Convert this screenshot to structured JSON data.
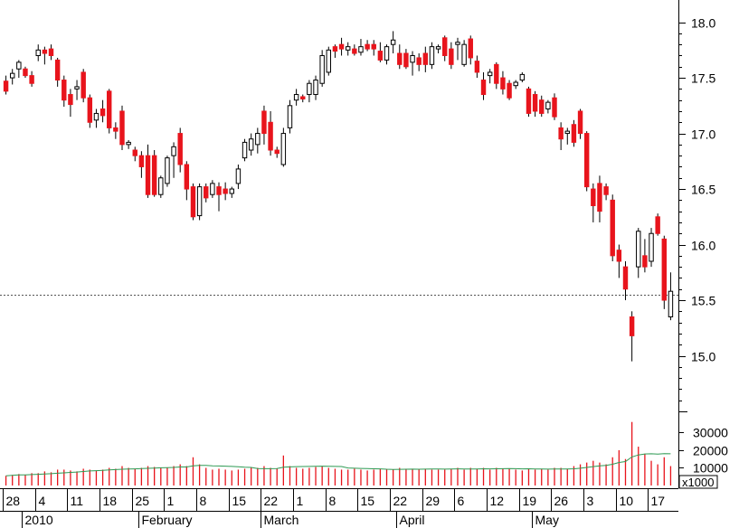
{
  "chart_data": {
    "type": "candlestick",
    "price_axis": {
      "range": [
        14.5,
        18.2
      ],
      "ticks": [
        "15.0",
        "15.5",
        "16.0",
        "16.5",
        "17.0",
        "17.5",
        "18.0"
      ],
      "reference_level": 15.55
    },
    "volume_axis": {
      "range": [
        0,
        42000
      ],
      "ticks": [
        "10000",
        "20000",
        "30000"
      ],
      "unit_label": "x1000"
    },
    "date_axis": {
      "day_labels": [
        "28",
        "4",
        "11",
        "18",
        "25",
        "1",
        "8",
        "15",
        "22",
        "1",
        "8",
        "15",
        "22",
        "29",
        "6",
        "12",
        "19",
        "26",
        "3",
        "10",
        "17"
      ],
      "month_labels": [
        "2010",
        "February",
        "March",
        "April",
        "May"
      ]
    },
    "candles": [
      {
        "o": 17.47,
        "h": 17.52,
        "l": 17.35,
        "c": 17.38,
        "v": 5500,
        "up": false
      },
      {
        "o": 17.5,
        "h": 17.58,
        "l": 17.44,
        "c": 17.54,
        "v": 6000,
        "up": true
      },
      {
        "o": 17.58,
        "h": 17.66,
        "l": 17.5,
        "c": 17.64,
        "v": 6500,
        "up": true
      },
      {
        "o": 17.58,
        "h": 17.6,
        "l": 17.5,
        "c": 17.52,
        "v": 6000,
        "up": false
      },
      {
        "o": 17.52,
        "h": 17.56,
        "l": 17.42,
        "c": 17.45,
        "v": 7000,
        "up": false
      },
      {
        "o": 17.7,
        "h": 17.8,
        "l": 17.65,
        "c": 17.75,
        "v": 7000,
        "up": true
      },
      {
        "o": 17.75,
        "h": 17.78,
        "l": 17.62,
        "c": 17.72,
        "v": 8000,
        "up": false
      },
      {
        "o": 17.76,
        "h": 17.8,
        "l": 17.66,
        "c": 17.7,
        "v": 7500,
        "up": false
      },
      {
        "o": 17.66,
        "h": 17.68,
        "l": 17.42,
        "c": 17.48,
        "v": 9000,
        "up": false
      },
      {
        "o": 17.48,
        "h": 17.52,
        "l": 17.24,
        "c": 17.3,
        "v": 9000,
        "up": false
      },
      {
        "o": 17.35,
        "h": 17.4,
        "l": 17.15,
        "c": 17.26,
        "v": 8500,
        "up": false
      },
      {
        "o": 17.4,
        "h": 17.48,
        "l": 17.3,
        "c": 17.42,
        "v": 8000,
        "up": true
      },
      {
        "o": 17.55,
        "h": 17.58,
        "l": 17.28,
        "c": 17.32,
        "v": 9500,
        "up": false
      },
      {
        "o": 17.32,
        "h": 17.35,
        "l": 17.05,
        "c": 17.1,
        "v": 9000,
        "up": false
      },
      {
        "o": 17.12,
        "h": 17.22,
        "l": 17.05,
        "c": 17.18,
        "v": 8500,
        "up": true
      },
      {
        "o": 17.22,
        "h": 17.3,
        "l": 17.1,
        "c": 17.16,
        "v": 9000,
        "up": false
      },
      {
        "o": 17.38,
        "h": 17.4,
        "l": 17.0,
        "c": 17.05,
        "v": 10000,
        "up": false
      },
      {
        "o": 17.05,
        "h": 17.1,
        "l": 16.95,
        "c": 17.02,
        "v": 9500,
        "up": false
      },
      {
        "o": 17.2,
        "h": 17.25,
        "l": 16.85,
        "c": 16.9,
        "v": 11000,
        "up": false
      },
      {
        "o": 16.9,
        "h": 16.94,
        "l": 16.86,
        "c": 16.92,
        "v": 10000,
        "up": true
      },
      {
        "o": 16.85,
        "h": 16.88,
        "l": 16.75,
        "c": 16.8,
        "v": 9500,
        "up": false
      },
      {
        "o": 16.8,
        "h": 16.84,
        "l": 16.6,
        "c": 16.7,
        "v": 10000,
        "up": false
      },
      {
        "o": 16.8,
        "h": 16.9,
        "l": 16.42,
        "c": 16.45,
        "v": 11000,
        "up": false
      },
      {
        "o": 16.8,
        "h": 16.85,
        "l": 16.43,
        "c": 16.45,
        "v": 10500,
        "up": false
      },
      {
        "o": 16.45,
        "h": 16.62,
        "l": 16.42,
        "c": 16.6,
        "v": 10000,
        "up": true
      },
      {
        "o": 16.55,
        "h": 16.8,
        "l": 16.52,
        "c": 16.78,
        "v": 10000,
        "up": true
      },
      {
        "o": 16.8,
        "h": 16.92,
        "l": 16.6,
        "c": 16.88,
        "v": 11000,
        "up": true
      },
      {
        "o": 17.0,
        "h": 17.05,
        "l": 16.65,
        "c": 16.72,
        "v": 12000,
        "up": false
      },
      {
        "o": 16.72,
        "h": 16.75,
        "l": 16.4,
        "c": 16.5,
        "v": 11000,
        "up": false
      },
      {
        "o": 16.52,
        "h": 16.55,
        "l": 16.22,
        "c": 16.25,
        "v": 16000,
        "up": false
      },
      {
        "o": 16.26,
        "h": 16.55,
        "l": 16.22,
        "c": 16.52,
        "v": 12000,
        "up": true
      },
      {
        "o": 16.52,
        "h": 16.55,
        "l": 16.38,
        "c": 16.42,
        "v": 10000,
        "up": false
      },
      {
        "o": 16.45,
        "h": 16.58,
        "l": 16.42,
        "c": 16.55,
        "v": 9000,
        "up": true
      },
      {
        "o": 16.52,
        "h": 16.56,
        "l": 16.3,
        "c": 16.45,
        "v": 9500,
        "up": false
      },
      {
        "o": 16.5,
        "h": 16.56,
        "l": 16.4,
        "c": 16.46,
        "v": 9000,
        "up": false
      },
      {
        "o": 16.46,
        "h": 16.52,
        "l": 16.42,
        "c": 16.5,
        "v": 8500,
        "up": true
      },
      {
        "o": 16.55,
        "h": 16.72,
        "l": 16.5,
        "c": 16.68,
        "v": 9000,
        "up": true
      },
      {
        "o": 16.78,
        "h": 16.95,
        "l": 16.75,
        "c": 16.92,
        "v": 9500,
        "up": true
      },
      {
        "o": 16.85,
        "h": 17.0,
        "l": 16.8,
        "c": 16.95,
        "v": 10000,
        "up": true
      },
      {
        "o": 16.9,
        "h": 17.05,
        "l": 16.82,
        "c": 17.0,
        "v": 10000,
        "up": true
      },
      {
        "o": 17.2,
        "h": 17.25,
        "l": 16.9,
        "c": 17.0,
        "v": 11000,
        "up": false
      },
      {
        "o": 17.1,
        "h": 17.2,
        "l": 16.8,
        "c": 16.85,
        "v": 10000,
        "up": false
      },
      {
        "o": 16.85,
        "h": 16.88,
        "l": 16.78,
        "c": 16.82,
        "v": 9500,
        "up": false
      },
      {
        "o": 16.72,
        "h": 17.05,
        "l": 16.7,
        "c": 17.0,
        "v": 17000,
        "up": true
      },
      {
        "o": 17.05,
        "h": 17.3,
        "l": 17.0,
        "c": 17.25,
        "v": 11000,
        "up": true
      },
      {
        "o": 17.3,
        "h": 17.4,
        "l": 17.25,
        "c": 17.35,
        "v": 10000,
        "up": true
      },
      {
        "o": 17.33,
        "h": 17.35,
        "l": 17.28,
        "c": 17.31,
        "v": 9500,
        "up": false
      },
      {
        "o": 17.35,
        "h": 17.48,
        "l": 17.28,
        "c": 17.45,
        "v": 10000,
        "up": true
      },
      {
        "o": 17.35,
        "h": 17.52,
        "l": 17.3,
        "c": 17.48,
        "v": 10500,
        "up": true
      },
      {
        "o": 17.45,
        "h": 17.75,
        "l": 17.42,
        "c": 17.7,
        "v": 11000,
        "up": true
      },
      {
        "o": 17.55,
        "h": 17.78,
        "l": 17.52,
        "c": 17.75,
        "v": 10000,
        "up": true
      },
      {
        "o": 17.78,
        "h": 17.8,
        "l": 17.68,
        "c": 17.74,
        "v": 9500,
        "up": false
      },
      {
        "o": 17.8,
        "h": 17.86,
        "l": 17.7,
        "c": 17.76,
        "v": 9000,
        "up": false
      },
      {
        "o": 17.75,
        "h": 17.82,
        "l": 17.7,
        "c": 17.78,
        "v": 9000,
        "up": true
      },
      {
        "o": 17.76,
        "h": 17.8,
        "l": 17.7,
        "c": 17.72,
        "v": 9500,
        "up": false
      },
      {
        "o": 17.73,
        "h": 17.85,
        "l": 17.7,
        "c": 17.78,
        "v": 9000,
        "up": true
      },
      {
        "o": 17.8,
        "h": 17.84,
        "l": 17.74,
        "c": 17.76,
        "v": 8500,
        "up": false
      },
      {
        "o": 17.8,
        "h": 17.84,
        "l": 17.7,
        "c": 17.76,
        "v": 9000,
        "up": false
      },
      {
        "o": 17.74,
        "h": 17.82,
        "l": 17.64,
        "c": 17.66,
        "v": 9500,
        "up": false
      },
      {
        "o": 17.66,
        "h": 17.8,
        "l": 17.62,
        "c": 17.78,
        "v": 9000,
        "up": true
      },
      {
        "o": 17.8,
        "h": 17.92,
        "l": 17.72,
        "c": 17.84,
        "v": 9000,
        "up": true
      },
      {
        "o": 17.72,
        "h": 17.8,
        "l": 17.58,
        "c": 17.62,
        "v": 10000,
        "up": false
      },
      {
        "o": 17.72,
        "h": 17.76,
        "l": 17.58,
        "c": 17.6,
        "v": 9500,
        "up": false
      },
      {
        "o": 17.64,
        "h": 17.74,
        "l": 17.52,
        "c": 17.7,
        "v": 9500,
        "up": true
      },
      {
        "o": 17.68,
        "h": 17.72,
        "l": 17.56,
        "c": 17.62,
        "v": 9000,
        "up": false
      },
      {
        "o": 17.72,
        "h": 17.78,
        "l": 17.55,
        "c": 17.62,
        "v": 9500,
        "up": false
      },
      {
        "o": 17.62,
        "h": 17.82,
        "l": 17.58,
        "c": 17.78,
        "v": 9000,
        "up": true
      },
      {
        "o": 17.76,
        "h": 17.8,
        "l": 17.72,
        "c": 17.78,
        "v": 9000,
        "up": true
      },
      {
        "o": 17.86,
        "h": 17.88,
        "l": 17.65,
        "c": 17.7,
        "v": 9000,
        "up": false
      },
      {
        "o": 17.76,
        "h": 17.82,
        "l": 17.58,
        "c": 17.62,
        "v": 9500,
        "up": false
      },
      {
        "o": 17.8,
        "h": 17.86,
        "l": 17.66,
        "c": 17.82,
        "v": 10000,
        "up": true
      },
      {
        "o": 17.62,
        "h": 17.84,
        "l": 17.6,
        "c": 17.8,
        "v": 9000,
        "up": true
      },
      {
        "o": 17.85,
        "h": 17.88,
        "l": 17.62,
        "c": 17.68,
        "v": 10000,
        "up": false
      },
      {
        "o": 17.65,
        "h": 17.7,
        "l": 17.5,
        "c": 17.55,
        "v": 9500,
        "up": false
      },
      {
        "o": 17.48,
        "h": 17.55,
        "l": 17.3,
        "c": 17.35,
        "v": 10000,
        "up": false
      },
      {
        "o": 17.52,
        "h": 17.58,
        "l": 17.45,
        "c": 17.55,
        "v": 9000,
        "up": true
      },
      {
        "o": 17.62,
        "h": 17.64,
        "l": 17.4,
        "c": 17.45,
        "v": 10000,
        "up": false
      },
      {
        "o": 17.5,
        "h": 17.56,
        "l": 17.35,
        "c": 17.4,
        "v": 9500,
        "up": false
      },
      {
        "o": 17.45,
        "h": 17.48,
        "l": 17.3,
        "c": 17.32,
        "v": 9500,
        "up": false
      },
      {
        "o": 17.43,
        "h": 17.48,
        "l": 17.4,
        "c": 17.46,
        "v": 9000,
        "up": true
      },
      {
        "o": 17.48,
        "h": 17.55,
        "l": 17.46,
        "c": 17.53,
        "v": 8500,
        "up": true
      },
      {
        "o": 17.4,
        "h": 17.42,
        "l": 17.15,
        "c": 17.18,
        "v": 9500,
        "up": false
      },
      {
        "o": 17.35,
        "h": 17.38,
        "l": 17.15,
        "c": 17.2,
        "v": 9000,
        "up": false
      },
      {
        "o": 17.3,
        "h": 17.34,
        "l": 17.15,
        "c": 17.18,
        "v": 9500,
        "up": false
      },
      {
        "o": 17.22,
        "h": 17.3,
        "l": 17.18,
        "c": 17.28,
        "v": 9000,
        "up": true
      },
      {
        "o": 17.32,
        "h": 17.36,
        "l": 17.12,
        "c": 17.15,
        "v": 10000,
        "up": false
      },
      {
        "o": 17.05,
        "h": 17.1,
        "l": 16.85,
        "c": 16.95,
        "v": 10000,
        "up": false
      },
      {
        "o": 17.0,
        "h": 17.05,
        "l": 16.9,
        "c": 17.02,
        "v": 9500,
        "up": true
      },
      {
        "o": 17.08,
        "h": 17.12,
        "l": 16.88,
        "c": 16.92,
        "v": 11000,
        "up": false
      },
      {
        "o": 17.2,
        "h": 17.22,
        "l": 16.95,
        "c": 17.0,
        "v": 12000,
        "up": false
      },
      {
        "o": 17.0,
        "h": 17.02,
        "l": 16.48,
        "c": 16.52,
        "v": 13000,
        "up": false
      },
      {
        "o": 16.5,
        "h": 16.55,
        "l": 16.2,
        "c": 16.35,
        "v": 14000,
        "up": false
      },
      {
        "o": 16.55,
        "h": 16.62,
        "l": 16.2,
        "c": 16.3,
        "v": 13000,
        "up": false
      },
      {
        "o": 16.52,
        "h": 16.55,
        "l": 16.4,
        "c": 16.45,
        "v": 12000,
        "up": false
      },
      {
        "o": 16.4,
        "h": 16.45,
        "l": 15.85,
        "c": 15.9,
        "v": 16000,
        "up": false
      },
      {
        "o": 15.95,
        "h": 16.0,
        "l": 15.7,
        "c": 15.85,
        "v": 20000,
        "up": false
      },
      {
        "o": 15.8,
        "h": 15.85,
        "l": 15.5,
        "c": 15.6,
        "v": 15000,
        "up": false
      },
      {
        "o": 15.35,
        "h": 15.4,
        "l": 14.95,
        "c": 15.18,
        "v": 36000,
        "up": false
      },
      {
        "o": 15.8,
        "h": 16.15,
        "l": 15.7,
        "c": 16.12,
        "v": 22000,
        "up": true
      },
      {
        "o": 15.9,
        "h": 16.05,
        "l": 15.75,
        "c": 15.8,
        "v": 18000,
        "up": false
      },
      {
        "o": 15.85,
        "h": 16.15,
        "l": 15.8,
        "c": 16.1,
        "v": 14000,
        "up": true
      },
      {
        "o": 16.25,
        "h": 16.28,
        "l": 16.08,
        "c": 16.1,
        "v": 12000,
        "up": false
      },
      {
        "o": 16.05,
        "h": 16.08,
        "l": 15.42,
        "c": 15.5,
        "v": 16000,
        "up": false
      },
      {
        "o": 15.35,
        "h": 15.75,
        "l": 15.32,
        "c": 15.58,
        "v": 11000,
        "up": true
      }
    ]
  },
  "colors": {
    "down_candle": "#e8141c",
    "up_candle": "#ffffff",
    "volume_bar": "#e8141c",
    "volume_average_line": "#2e9a53",
    "reference_line": "#555555",
    "axis": "#000000"
  }
}
